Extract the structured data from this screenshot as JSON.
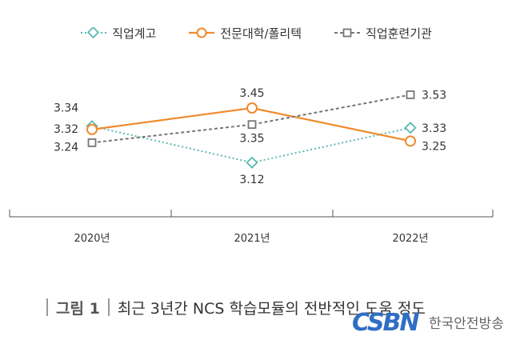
{
  "chart_data": {
    "type": "line",
    "categories": [
      "2020년",
      "2021년",
      "2022년"
    ],
    "series": [
      {
        "name": "직업계고",
        "values": [
          3.34,
          3.12,
          3.33
        ],
        "color": "#5bb8b0",
        "style": "dotted",
        "marker": "diamond"
      },
      {
        "name": "전문대학/폴리텍",
        "values": [
          3.32,
          3.45,
          3.25
        ],
        "color": "#f08a2b",
        "style": "solid",
        "marker": "circle"
      },
      {
        "name": "직업훈련기관",
        "values": [
          3.24,
          3.35,
          3.53
        ],
        "color": "#777777",
        "style": "dashed",
        "marker": "square"
      }
    ],
    "ylim": [
      3.0,
      3.6
    ],
    "grid": false,
    "legend": "top-center"
  },
  "caption": {
    "figure_label": "그림 1",
    "title": "최근 3년간 NCS 학습모듈의 전반적인 도움 정도"
  },
  "watermark": {
    "logo_text": "CSBN",
    "text": "한국안전방송"
  }
}
